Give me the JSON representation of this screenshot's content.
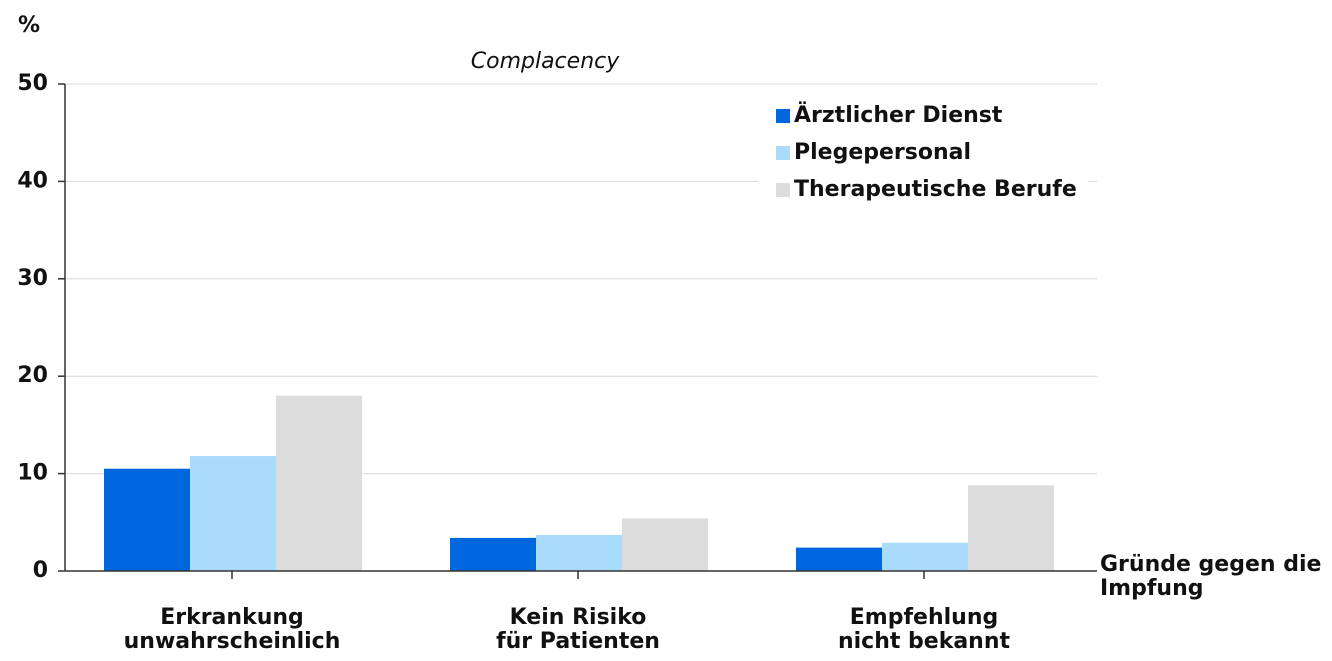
{
  "chart_data": {
    "type": "bar",
    "title": "Complacency",
    "y_label": "%",
    "x_label": "Gründe gegen die\nImpfung",
    "categories": [
      "Erkrankung\nunwahrscheinlich",
      "Kein Risiko\nfür Patienten",
      "Empfehlung\nnicht bekannt"
    ],
    "series": [
      {
        "name": "Ärztlicher Dienst",
        "color": "#0066dd",
        "values": [
          10.5,
          3.4,
          2.4
        ]
      },
      {
        "name": "Plegepersonal",
        "color": "#a8dcfa",
        "values": [
          11.8,
          3.7,
          2.9
        ]
      },
      {
        "name": "Therapeutische Berufe",
        "color": "#dcdcdc",
        "values": [
          18.0,
          5.4,
          8.8
        ]
      }
    ],
    "ylim": [
      0,
      50
    ],
    "yticks": [
      0,
      10,
      20,
      30,
      40,
      50
    ],
    "grid": true,
    "legend": "upper right"
  }
}
